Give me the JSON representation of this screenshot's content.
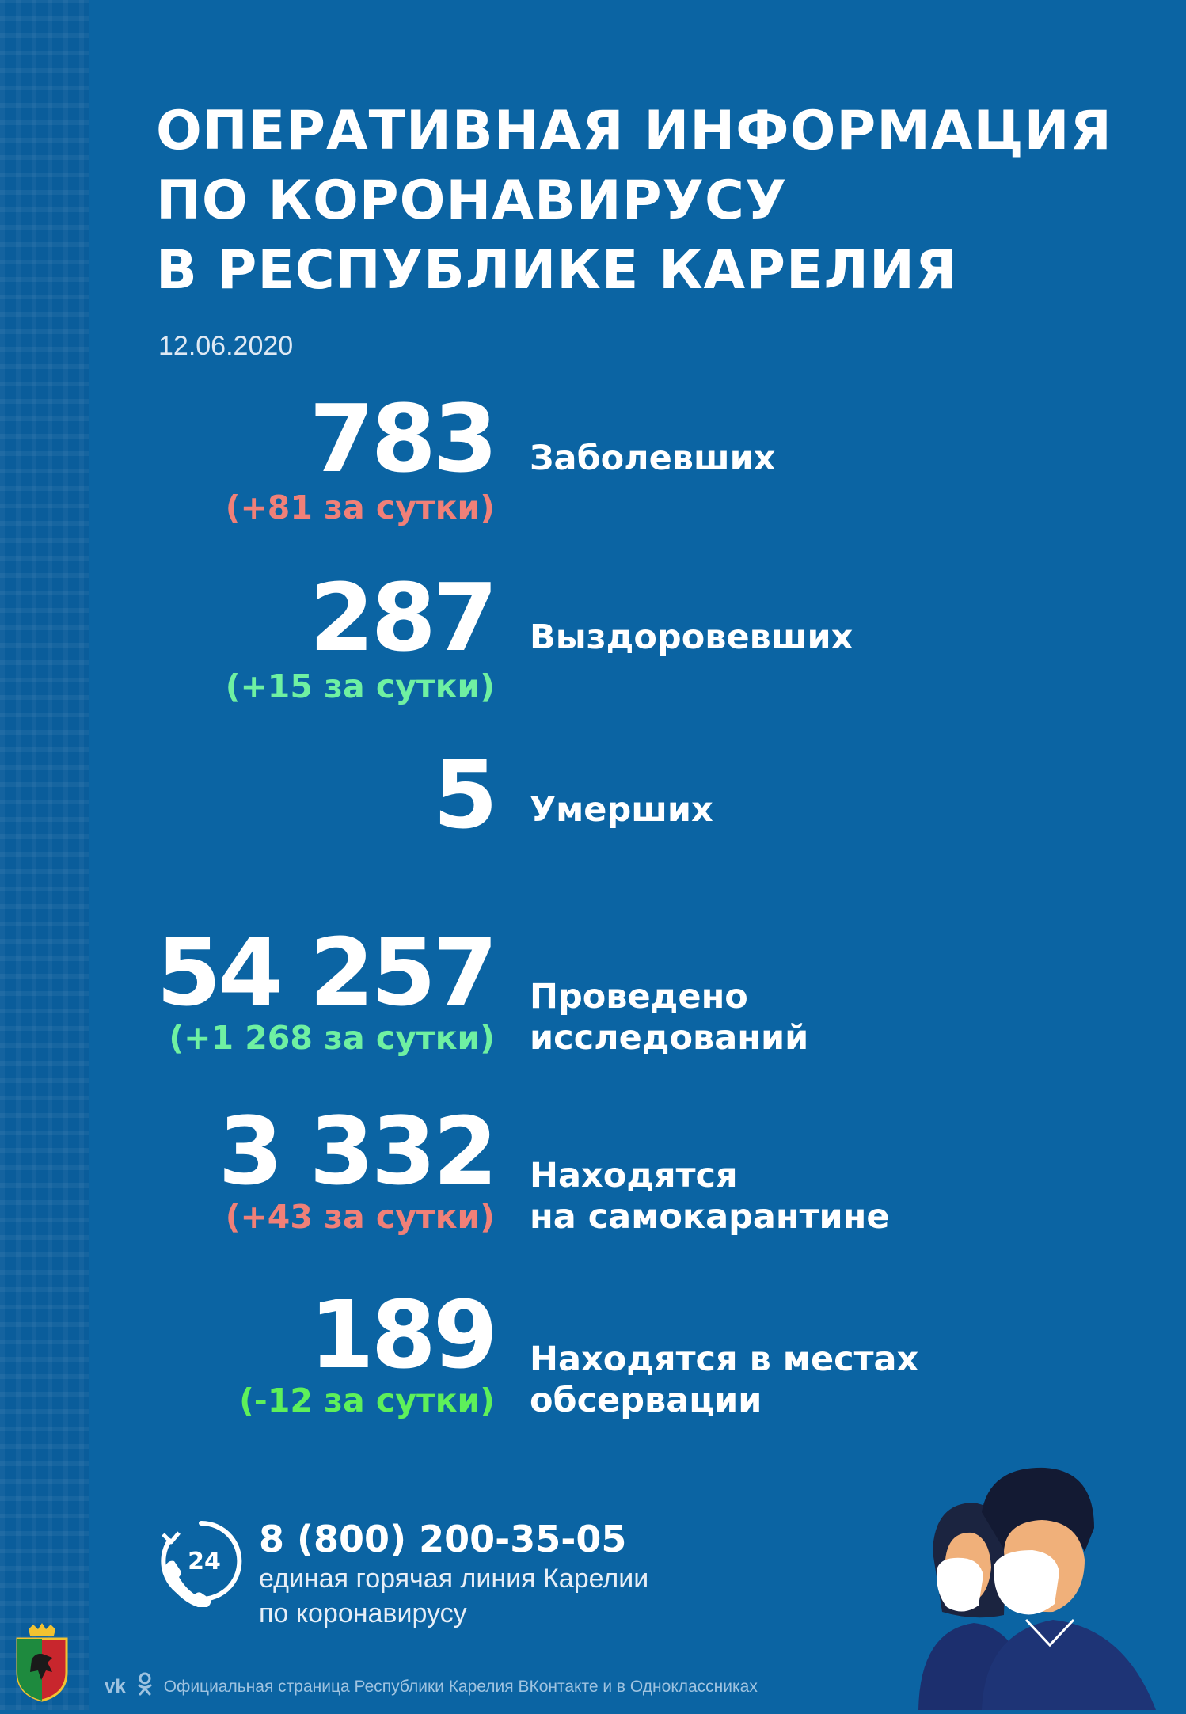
{
  "title_lines": [
    "ОПЕРАТИВНАЯ ИНФОРМАЦИЯ",
    "ПО КОРОНАВИРУСУ",
    "В РЕСПУБЛИКЕ КАРЕЛИЯ"
  ],
  "date": "12.06.2020",
  "stats": [
    {
      "value": "783",
      "delta": "(+81 за сутки)",
      "delta_color": "#f08078",
      "label_lines": [
        "Заболевших"
      ]
    },
    {
      "value": "287",
      "delta": "(+15 за сутки)",
      "delta_color": "#6ff0a2",
      "label_lines": [
        "Выздоровевших"
      ]
    },
    {
      "value": "5",
      "delta": "",
      "delta_color": "",
      "label_lines": [
        "Умерших"
      ]
    },
    {
      "value": "54 257",
      "delta": "(+1 268 за сутки)",
      "delta_color": "#6ff0a2",
      "label_lines": [
        "Проведено",
        "исследований"
      ]
    },
    {
      "value": "3 332",
      "delta": "(+43 за сутки)",
      "delta_color": "#f08078",
      "label_lines": [
        "Находятся",
        "на самокарантине"
      ]
    },
    {
      "value": "189",
      "delta": "(-12 за сутки)",
      "delta_color": "#5ef05a",
      "label_lines": [
        "Находятся в местах",
        "обсервации"
      ]
    }
  ],
  "hotline": {
    "icon_text": "24",
    "phone": "8 (800) 200-35-05",
    "desc_lines": [
      "единая горячая линия Карелии",
      "по коронавирусу"
    ]
  },
  "footer": {
    "vk": "vk",
    "text": "Официальная страница Республики Карелия ВКонтакте и в Одноклассниках"
  },
  "icons": [
    "hotline-24-icon",
    "vk-icon",
    "ok-icon",
    "coat-of-arms",
    "masked-people-illustration"
  ]
}
